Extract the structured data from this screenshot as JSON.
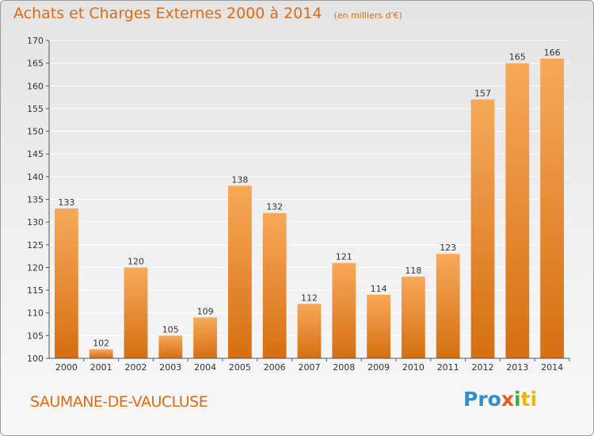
{
  "title": "Achats et Charges Externes 2000 à 2014",
  "subtitle": "(en milliers d'€)",
  "commune": "SAUMANE-DE-VAUCLUSE",
  "logo": {
    "text": "Proxiti",
    "parts": [
      "Pro",
      "x",
      "i",
      "ti"
    ]
  },
  "colors": {
    "accent": "#e06a10",
    "bar_light": "#f7a95a",
    "bar_dark": "#d56f12",
    "grid": "#ffffff",
    "axis": "#555555"
  },
  "chart_data": {
    "type": "bar",
    "categories": [
      "2000",
      "2001",
      "2002",
      "2003",
      "2004",
      "2005",
      "2006",
      "2007",
      "2008",
      "2009",
      "2010",
      "2011",
      "2012",
      "2013",
      "2014"
    ],
    "values": [
      133,
      102,
      120,
      105,
      109,
      138,
      132,
      112,
      121,
      114,
      118,
      123,
      157,
      165,
      166
    ],
    "ylim": [
      100,
      170
    ],
    "yticks": [
      100,
      105,
      110,
      115,
      120,
      125,
      130,
      135,
      140,
      145,
      150,
      155,
      160,
      165,
      170
    ],
    "grid": true,
    "title": "Achats et Charges Externes 2000 à 2014",
    "subtitle": "(en milliers d'€)"
  }
}
